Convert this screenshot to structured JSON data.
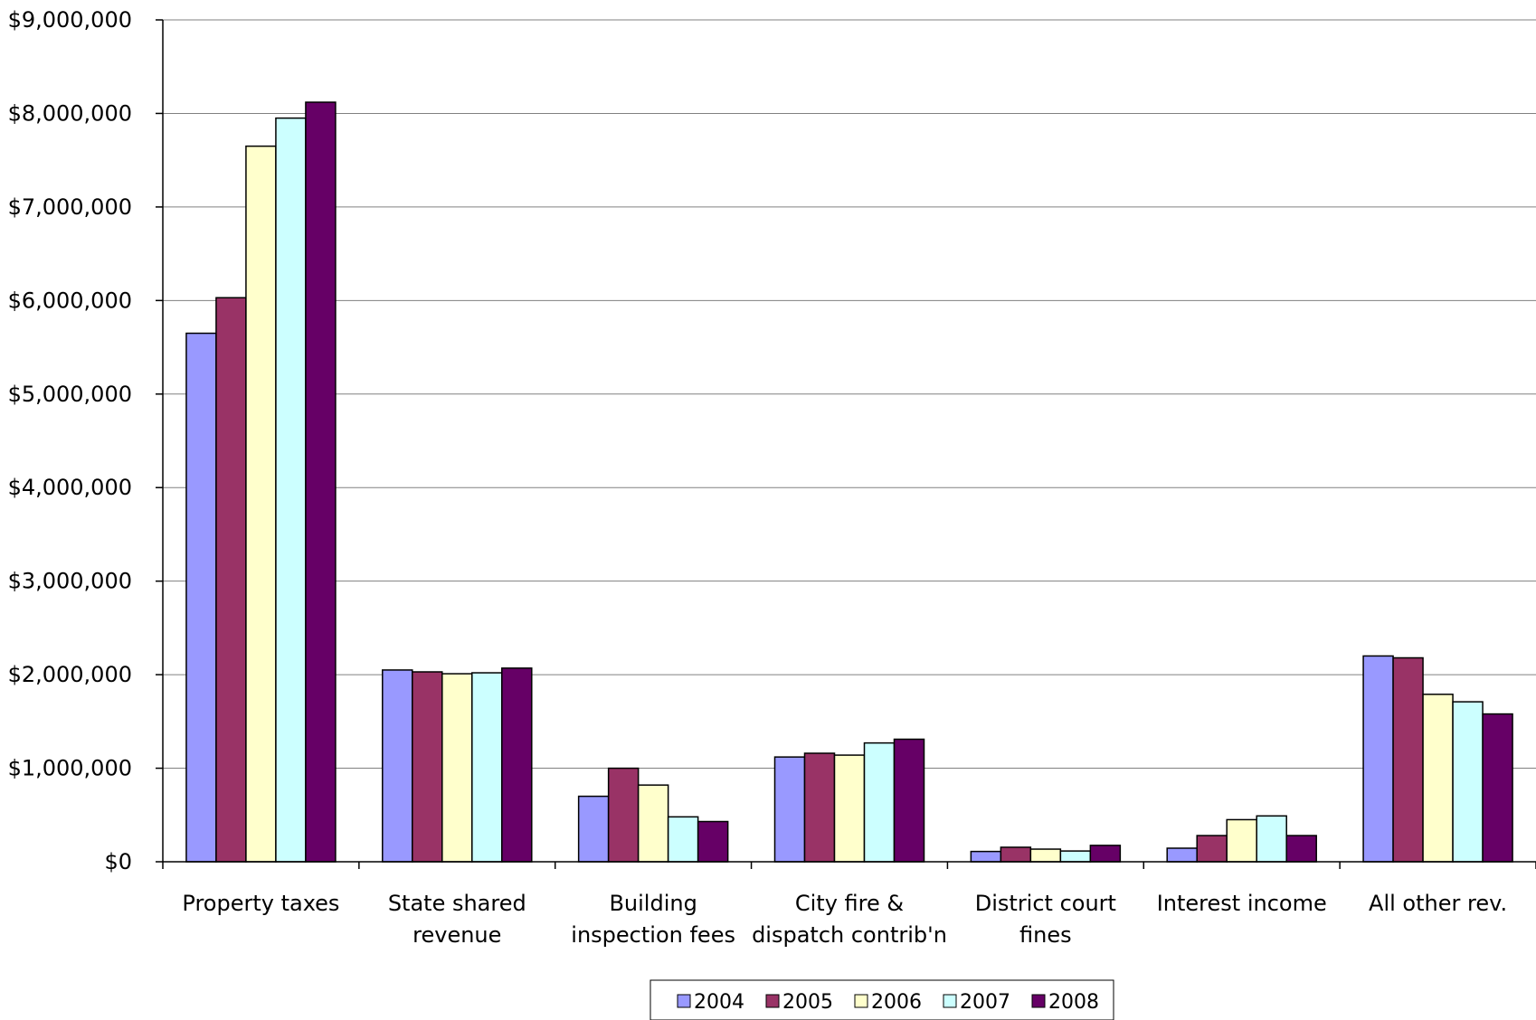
{
  "chart_data": {
    "type": "bar",
    "title": "",
    "xlabel": "",
    "ylabel": "",
    "ylim": [
      0,
      9000000
    ],
    "yticks": [
      0,
      1000000,
      2000000,
      3000000,
      4000000,
      5000000,
      6000000,
      7000000,
      8000000,
      9000000
    ],
    "ytick_labels": [
      "$0",
      "$1,000,000",
      "$2,000,000",
      "$3,000,000",
      "$4,000,000",
      "$5,000,000",
      "$6,000,000",
      "$7,000,000",
      "$8,000,000",
      "$9,000,000"
    ],
    "grid": true,
    "legend_position": "bottom",
    "categories": [
      [
        "Property taxes"
      ],
      [
        "State shared",
        "revenue"
      ],
      [
        "Building",
        "inspection fees"
      ],
      [
        "City fire &",
        "dispatch contrib'n"
      ],
      [
        "District court",
        "fines"
      ],
      [
        "Interest income"
      ],
      [
        "All other rev."
      ]
    ],
    "series": [
      {
        "name": "2004",
        "color": "#9999ff",
        "values": [
          5650000,
          2050000,
          700000,
          1120000,
          110000,
          145000,
          2200000
        ]
      },
      {
        "name": "2005",
        "color": "#993366",
        "values": [
          6030000,
          2030000,
          1000000,
          1160000,
          155000,
          280000,
          2180000
        ]
      },
      {
        "name": "2006",
        "color": "#ffffcc",
        "values": [
          7650000,
          2010000,
          820000,
          1140000,
          135000,
          450000,
          1790000
        ]
      },
      {
        "name": "2007",
        "color": "#ccffff",
        "values": [
          7950000,
          2020000,
          480000,
          1270000,
          115000,
          490000,
          1710000
        ]
      },
      {
        "name": "2008",
        "color": "#660066",
        "values": [
          8120000,
          2070000,
          430000,
          1310000,
          175000,
          280000,
          1580000
        ]
      }
    ]
  }
}
